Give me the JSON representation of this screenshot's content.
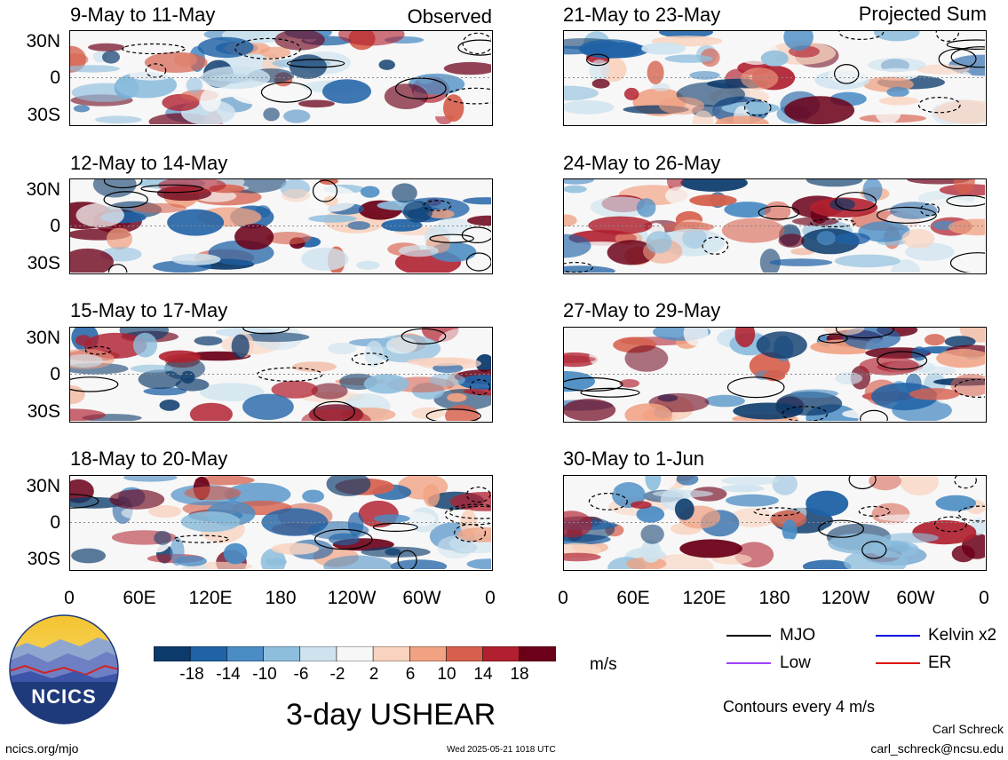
{
  "header": {
    "left_tag": "Observed",
    "right_tag": "Projected Sum"
  },
  "panels_left": [
    {
      "title": "9-May to 11-May"
    },
    {
      "title": "12-May to 14-May"
    },
    {
      "title": "15-May to 17-May"
    },
    {
      "title": "18-May to 20-May"
    }
  ],
  "panels_right": [
    {
      "title": "21-May to 23-May"
    },
    {
      "title": "24-May to 26-May"
    },
    {
      "title": "27-May to 29-May"
    },
    {
      "title": "30-May to 1-Jun"
    }
  ],
  "lat_labels": [
    "30N",
    "0",
    "30S"
  ],
  "lon_labels": [
    "0",
    "60E",
    "120E",
    "180",
    "120W",
    "60W",
    "0"
  ],
  "colorbar": {
    "labels": [
      "-18",
      "-14",
      "-10",
      "-6",
      "-2",
      "2",
      "6",
      "10",
      "14",
      "18"
    ],
    "colors": [
      "#0b3a6b",
      "#1f62a6",
      "#4a8cc4",
      "#8ebedd",
      "#cfe3ef",
      "#f7f7f7",
      "#f9d3bf",
      "#f0a283",
      "#d6604d",
      "#b0202f",
      "#6b0018"
    ],
    "unit": "m/s"
  },
  "legend": {
    "items": [
      {
        "label": "MJO",
        "color": "#000000"
      },
      {
        "label": "Kelvin x2",
        "color": "#0000dd"
      },
      {
        "label": "Low",
        "color": "#a040ff"
      },
      {
        "label": "ER",
        "color": "#dd1010"
      }
    ],
    "contours_note": "Contours every 4 m/s"
  },
  "main_title": "3-day USHEAR",
  "logo_text": "NCICS",
  "footer": {
    "site": "ncics.org/mjo",
    "timestamp": "Wed 2025-05-21 1018 UTC",
    "author": "Carl Schreck",
    "email": "carl_schreck@ncsu.edu"
  }
}
